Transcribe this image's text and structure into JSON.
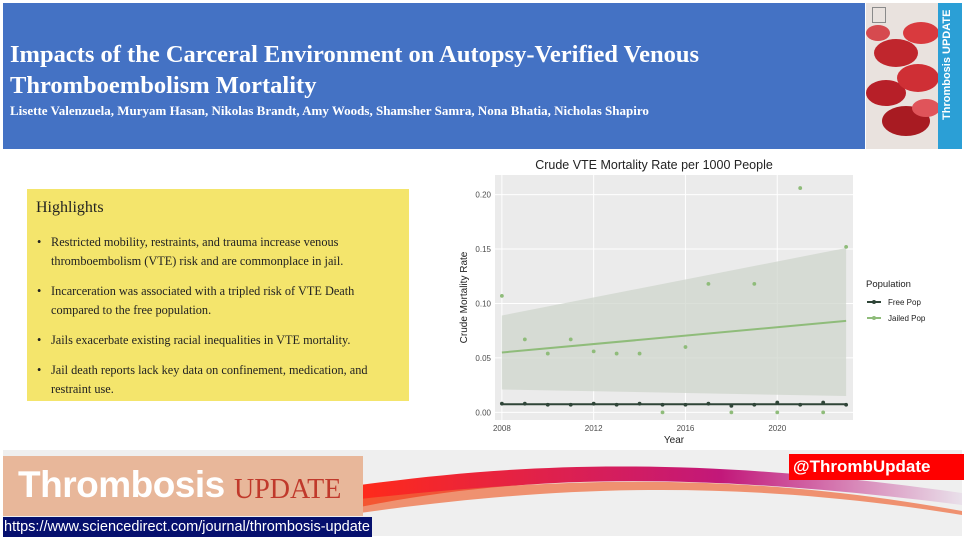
{
  "header": {
    "title": "Impacts of the Carceral Environment on Autopsy-Verified Venous Thromboembolism Mortality",
    "authors": "Lisette Valenzuela, Muryam Hasan, Nikolas Brandt, Amy Woods, Shamsher Samra, Nona Bhatia, Nicholas Shapiro"
  },
  "cover": {
    "spine_text": "Thrombosis UPDATE"
  },
  "highlights": {
    "title": "Highlights",
    "items": [
      "Restricted mobility, restraints, and trauma increase venous thromboembolism (VTE) risk and are commonplace in jail.",
      "Incarceration was associated with a tripled risk of VTE Death compared to the free population.",
      "Jails exacerbate existing racial inequalities in VTE mortality.",
      "Jail death reports lack key data on confinement, medication, and restraint use."
    ]
  },
  "chart_data": {
    "type": "scatter",
    "title": "Crude VTE Mortality Rate per 1000 People",
    "xlabel": "Year",
    "ylabel": "Crude Mortality Rate",
    "xlim": [
      2007.7,
      2023.3
    ],
    "ylim": [
      -0.007,
      0.218
    ],
    "xticks": [
      2008,
      2012,
      2016,
      2020
    ],
    "yticks": [
      0.0,
      0.05,
      0.1,
      0.15,
      0.2
    ],
    "ytick_labels": [
      "0.00",
      "0.05",
      "0.10",
      "0.15",
      "0.20"
    ],
    "legend_title": "Population",
    "legend_position": "right",
    "grid": true,
    "series": [
      {
        "name": "Free Pop",
        "color": "#2f4538",
        "x": [
          2008,
          2009,
          2010,
          2011,
          2012,
          2013,
          2014,
          2015,
          2016,
          2017,
          2018,
          2019,
          2020,
          2021,
          2022,
          2023
        ],
        "y": [
          0.008,
          0.008,
          0.007,
          0.007,
          0.008,
          0.007,
          0.008,
          0.007,
          0.007,
          0.008,
          0.006,
          0.007,
          0.009,
          0.007,
          0.009,
          0.007
        ],
        "trend": [
          0.0075,
          0.0075
        ]
      },
      {
        "name": "Jailed Pop",
        "color": "#8fbc7a",
        "x": [
          2008,
          2009,
          2010,
          2011,
          2012,
          2013,
          2014,
          2015,
          2016,
          2017,
          2018,
          2019,
          2020,
          2021,
          2022,
          2023
        ],
        "y": [
          0.107,
          0.067,
          0.054,
          0.067,
          0.056,
          0.054,
          0.054,
          0.0,
          0.06,
          0.118,
          0.0,
          0.118,
          0.0,
          0.206,
          0.0,
          0.152
        ],
        "trend": [
          0.055,
          0.084
        ],
        "band_low": [
          0.021,
          0.015
        ],
        "band_high": [
          0.089,
          0.151
        ]
      }
    ]
  },
  "footer": {
    "brand_main": "Thrombosis",
    "brand_sub": "UPDATE",
    "handle": "@ThrombUpdate",
    "url": "https://www.sciencedirect.com/journal/thrombosis-update"
  }
}
